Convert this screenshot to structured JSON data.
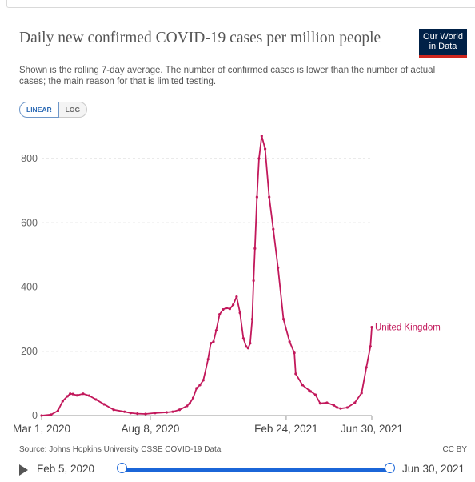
{
  "title": "Daily new confirmed COVID-19 cases per million people",
  "subtitle": "Shown is the rolling 7-day average. The number of confirmed cases is lower than the number of actual cases; the main reason for that is limited testing.",
  "logo": {
    "line1": "Our World",
    "line2": "in Data",
    "bg": "#002147",
    "accent": "#ce261e"
  },
  "scale_toggle": {
    "linear": "LINEAR",
    "log": "LOG",
    "selected": "LINEAR"
  },
  "source": "Source: Johns Hopkins University CSSE COVID-19 Data",
  "license": "CC BY",
  "timeline": {
    "start": "Feb 5, 2020",
    "end": "Jun 30, 2021",
    "play_icon": "play-icon"
  },
  "chart_data": {
    "type": "line",
    "title": "Daily new confirmed COVID-19 cases per million people",
    "xlabel": "",
    "ylabel": "",
    "x_ticks": [
      "Mar 1, 2020",
      "Aug 8, 2020",
      "Feb 24, 2021",
      "Jun 30, 2021"
    ],
    "y_ticks": [
      0,
      200,
      400,
      600,
      800
    ],
    "ylim": [
      0,
      880
    ],
    "xlim": [
      "2020-03-01",
      "2021-06-30"
    ],
    "grid": "horizontal dashed",
    "line_color": "#c2185b",
    "series": [
      {
        "name": "United Kingdom",
        "x": [
          "2020-03-01",
          "2020-03-15",
          "2020-03-25",
          "2020-04-01",
          "2020-04-08",
          "2020-04-12",
          "2020-04-16",
          "2020-04-22",
          "2020-05-01",
          "2020-05-10",
          "2020-05-20",
          "2020-06-01",
          "2020-06-15",
          "2020-07-01",
          "2020-07-10",
          "2020-07-20",
          "2020-08-01",
          "2020-08-15",
          "2020-09-01",
          "2020-09-10",
          "2020-09-20",
          "2020-10-01",
          "2020-10-05",
          "2020-10-10",
          "2020-10-15",
          "2020-10-20",
          "2020-10-25",
          "2020-11-01",
          "2020-11-05",
          "2020-11-09",
          "2020-11-13",
          "2020-11-18",
          "2020-11-23",
          "2020-11-28",
          "2020-12-03",
          "2020-12-08",
          "2020-12-13",
          "2020-12-18",
          "2020-12-23",
          "2020-12-27",
          "2020-12-30",
          "2021-01-02",
          "2021-01-05",
          "2021-01-07",
          "2021-01-09",
          "2021-01-12",
          "2021-01-15",
          "2021-01-19",
          "2021-01-24",
          "2021-01-30",
          "2021-02-05",
          "2021-02-12",
          "2021-02-20",
          "2021-03-01",
          "2021-03-08",
          "2021-03-10",
          "2021-03-20",
          "2021-03-30",
          "2021-04-01",
          "2021-04-08",
          "2021-04-15",
          "2021-04-25",
          "2021-05-05",
          "2021-05-10",
          "2021-05-15",
          "2021-05-25",
          "2021-06-05",
          "2021-06-15",
          "2021-06-22",
          "2021-06-28",
          "2021-06-30"
        ],
        "values": [
          0,
          3,
          15,
          45,
          60,
          68,
          67,
          63,
          68,
          62,
          50,
          35,
          18,
          12,
          8,
          6,
          5,
          8,
          10,
          12,
          18,
          30,
          38,
          55,
          85,
          95,
          110,
          175,
          225,
          230,
          265,
          315,
          330,
          335,
          332,
          345,
          370,
          320,
          240,
          215,
          210,
          225,
          300,
          420,
          520,
          680,
          800,
          870,
          830,
          680,
          580,
          460,
          300,
          230,
          195,
          130,
          95,
          78,
          75,
          65,
          38,
          40,
          32,
          25,
          22,
          25,
          40,
          70,
          150,
          215,
          275
        ]
      }
    ]
  }
}
